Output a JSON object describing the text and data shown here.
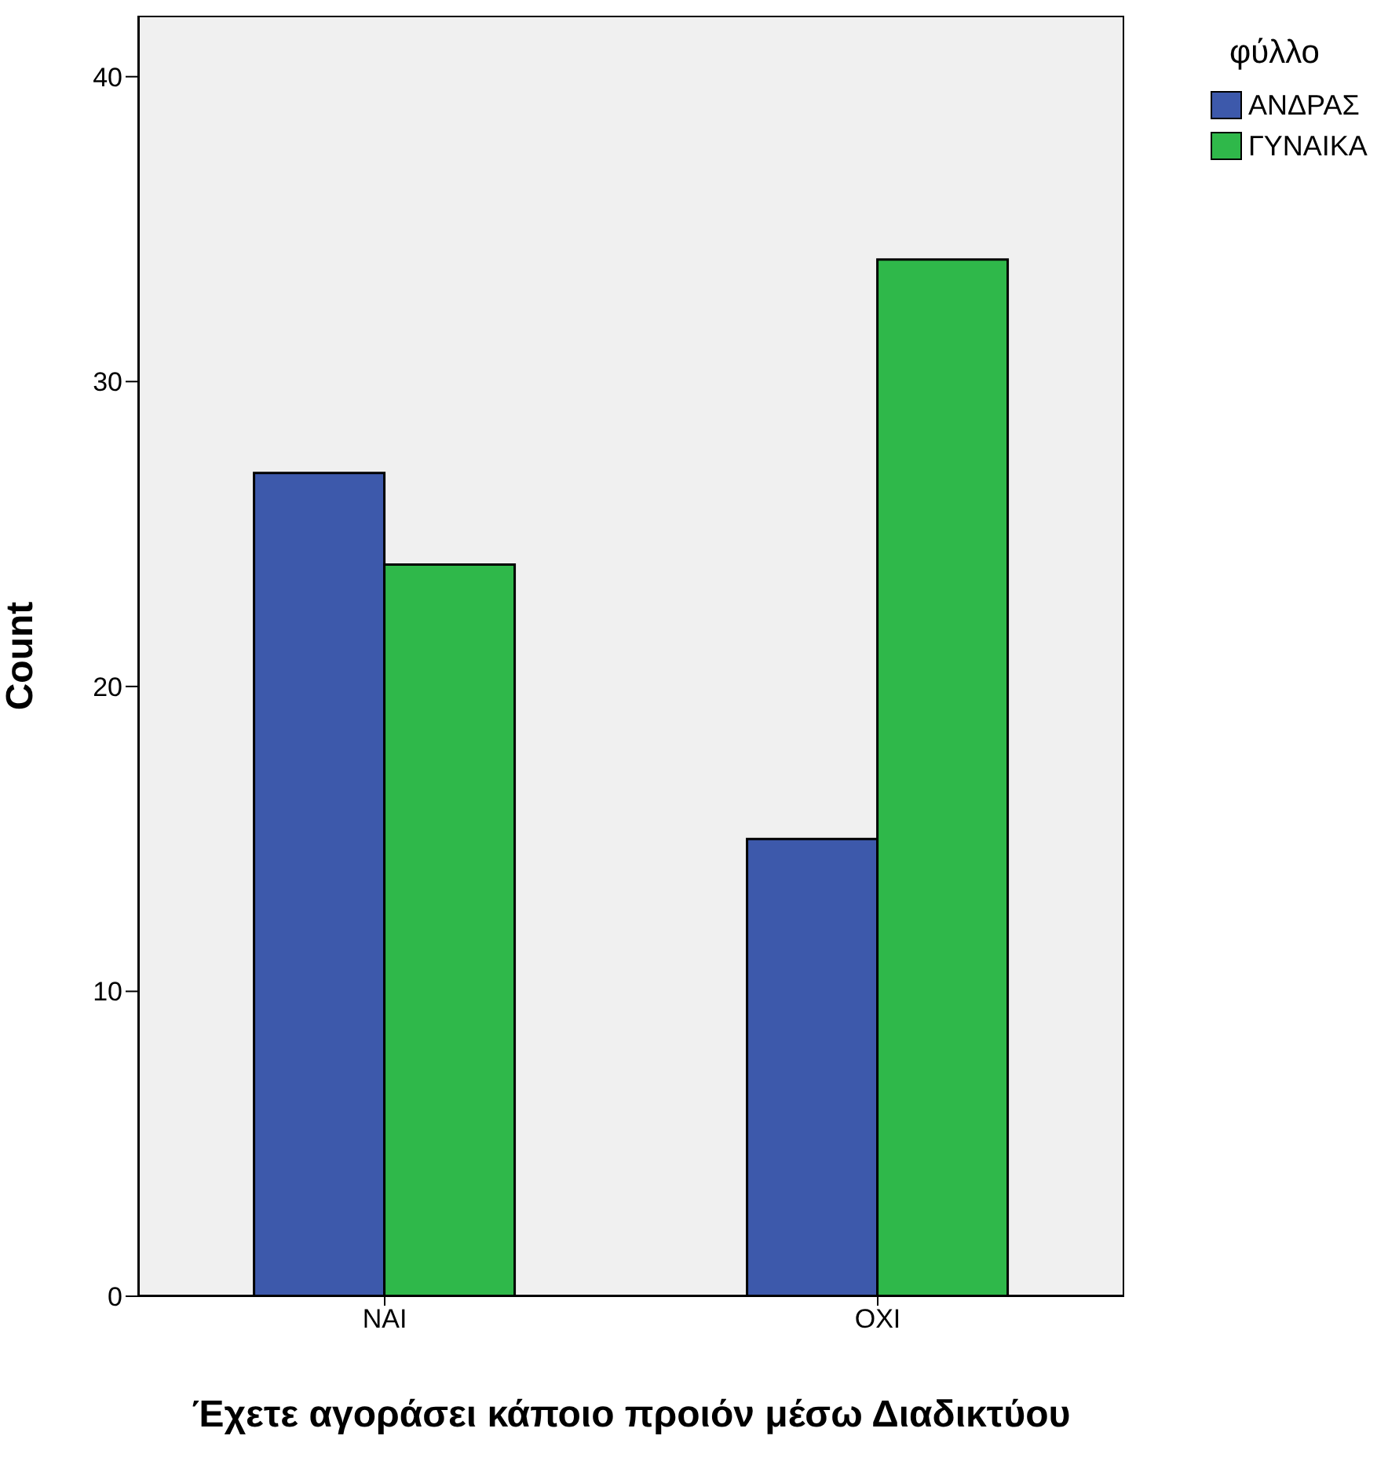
{
  "chart_data": {
    "type": "bar",
    "xlabel": "Έχετε αγοράσει κάποιο προιόν μέσω Διαδικτύου",
    "ylabel": "Count",
    "legend_title": "φύλλο",
    "categories": [
      "ΝΑΙ",
      "ΟΧΙ"
    ],
    "series": [
      {
        "name": "ΑΝΔΡΑΣ",
        "color": "#3d59ab",
        "values": [
          27,
          15
        ]
      },
      {
        "name": "ΓΥΝΑΙΚΑ",
        "color": "#2fb84a",
        "values": [
          24,
          34
        ]
      }
    ],
    "ylim": [
      0,
      42
    ],
    "yticks": [
      0,
      10,
      20,
      30,
      40
    ],
    "legend": "top right"
  }
}
